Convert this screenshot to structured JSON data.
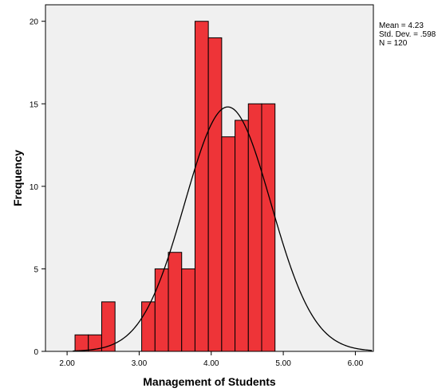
{
  "chart_data": {
    "type": "bar",
    "title": "",
    "xlabel": "Management of Students",
    "ylabel": "Frequency",
    "xlim": [
      1.7,
      6.25
    ],
    "ylim": [
      0,
      21
    ],
    "bin_width": 0.185,
    "bins": [
      {
        "start": 2.11,
        "count": 1
      },
      {
        "start": 2.295,
        "count": 1
      },
      {
        "start": 2.48,
        "count": 3
      },
      {
        "start": 2.665,
        "count": 0
      },
      {
        "start": 2.85,
        "count": 0
      },
      {
        "start": 3.035,
        "count": 3
      },
      {
        "start": 3.22,
        "count": 5
      },
      {
        "start": 3.405,
        "count": 6
      },
      {
        "start": 3.59,
        "count": 5
      },
      {
        "start": 3.775,
        "count": 20
      },
      {
        "start": 3.96,
        "count": 19
      },
      {
        "start": 4.145,
        "count": 13
      },
      {
        "start": 4.33,
        "count": 14
      },
      {
        "start": 4.515,
        "count": 15
      },
      {
        "start": 4.7,
        "count": 15
      }
    ],
    "x_ticks": [
      {
        "value": 2.0,
        "label": "2.00"
      },
      {
        "value": 3.0,
        "label": "3.00"
      },
      {
        "value": 4.0,
        "label": "4.00"
      },
      {
        "value": 5.0,
        "label": "5.00"
      },
      {
        "value": 6.0,
        "label": "6.00"
      }
    ],
    "y_ticks": [
      {
        "value": 0,
        "label": "0"
      },
      {
        "value": 5,
        "label": "5"
      },
      {
        "value": 10,
        "label": "10"
      },
      {
        "value": 15,
        "label": "15"
      },
      {
        "value": 20,
        "label": "20"
      }
    ],
    "normal_curve": {
      "mean": 4.23,
      "sd": 0.598,
      "n": 120
    },
    "stats_text": [
      "Mean = 4.23",
      "Std. Dev. = .598",
      "N = 120"
    ],
    "grid": false,
    "bar_color": "#ee3438",
    "plot_background": "#f0f0f0",
    "curve_color": "#000000"
  }
}
